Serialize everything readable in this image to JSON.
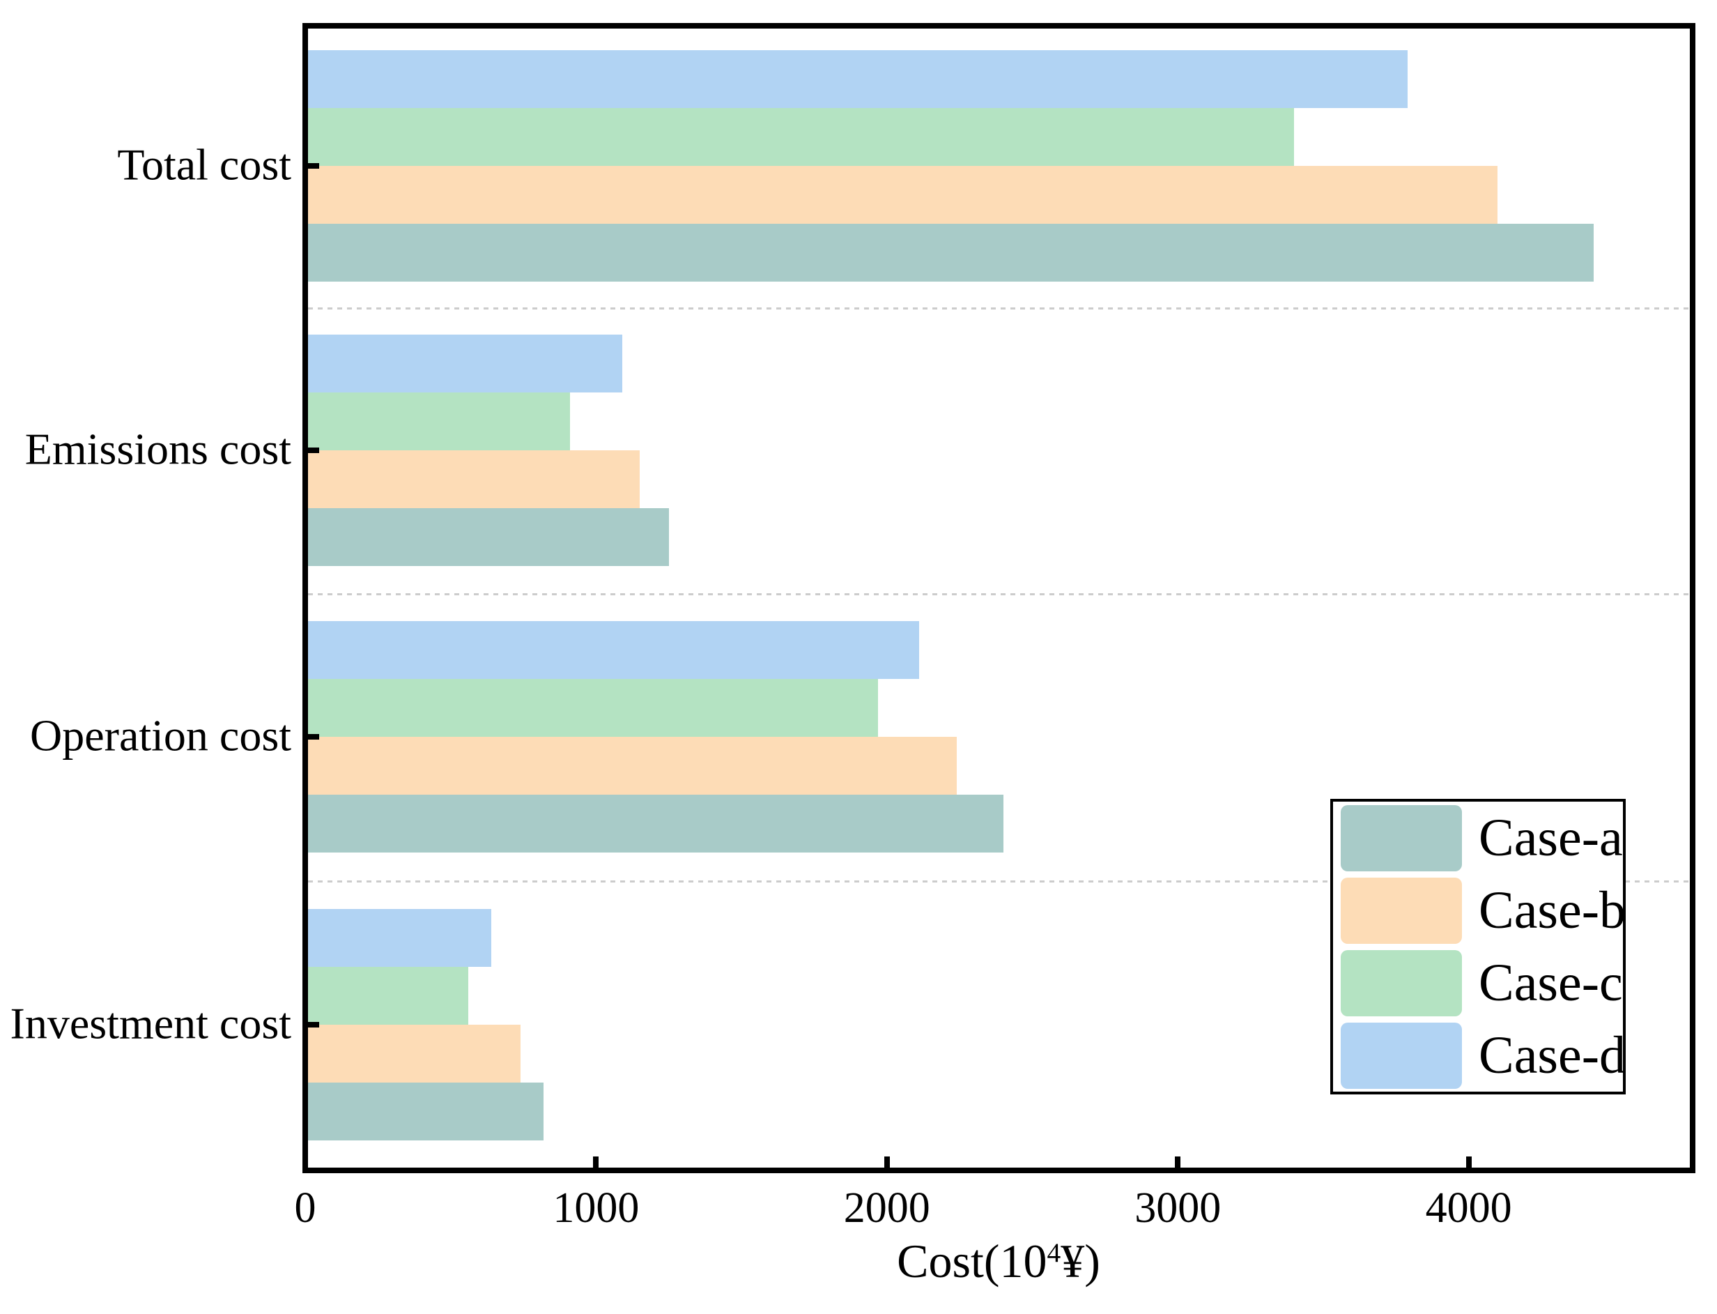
{
  "figure": {
    "background": "#ffffff",
    "axis_color": "#000000",
    "separator_color": "#cccccc"
  },
  "chart_data": {
    "type": "bar",
    "orientation": "horizontal",
    "title": "",
    "xlabel": "Cost(10⁴¥)",
    "xlabel_parts": {
      "pre": "Cost(10",
      "sup": "4",
      "post": "¥)"
    },
    "ylabel": "",
    "categories_top_to_bottom": [
      "Total cost",
      "Emissions cost",
      "Operation cost",
      "Investment cost"
    ],
    "series": [
      {
        "name": "Case-a",
        "color": "#a8cbc8",
        "values": [
          4430,
          1250,
          2400,
          820
        ]
      },
      {
        "name": "Case-b",
        "color": "#fddcb6",
        "values": [
          4100,
          1150,
          2240,
          740
        ]
      },
      {
        "name": "Case-c",
        "color": "#b4e3c2",
        "values": [
          3400,
          910,
          1970,
          560
        ]
      },
      {
        "name": "Case-d",
        "color": "#b1d3f3",
        "values": [
          3790,
          1090,
          2110,
          640
        ]
      }
    ],
    "bar_order_top_to_bottom": [
      "Case-d",
      "Case-c",
      "Case-b",
      "Case-a"
    ],
    "xlim": [
      0,
      4800
    ],
    "xticks": [
      0,
      1000,
      2000,
      3000,
      4000
    ],
    "grid": "none",
    "group_separators": "dashed horizontal lines between category groups",
    "legend_position": "center-right",
    "legend_entries_top_to_bottom": [
      "Case-a",
      "Case-b",
      "Case-c",
      "Case-d"
    ]
  }
}
